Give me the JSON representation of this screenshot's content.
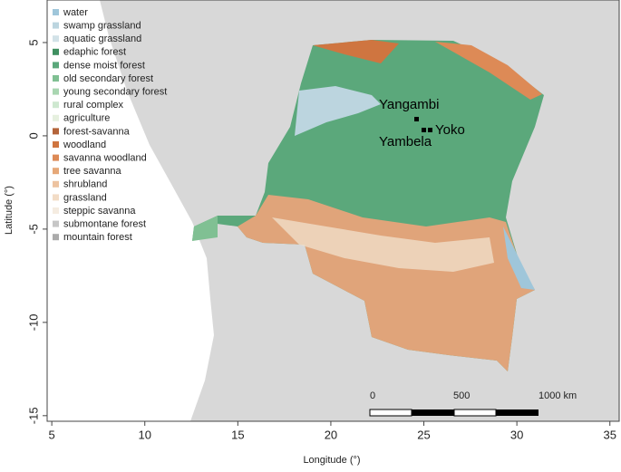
{
  "map": {
    "xlabel": "Longitude (°)",
    "ylabel": "Latitude (°)",
    "xlim": [
      4.75,
      35.5
    ],
    "ylim": [
      -15.3,
      7.28
    ],
    "xticks": [
      5,
      10,
      15,
      20,
      25,
      30,
      35
    ],
    "yticks": [
      5,
      0,
      -5,
      -10,
      -15
    ],
    "legend": [
      {
        "name": "water",
        "color": "#9fc6da"
      },
      {
        "name": "swamp grassland",
        "color": "#bcd5df"
      },
      {
        "name": "aquatic grassland",
        "color": "#d2e2e8"
      },
      {
        "name": "edaphic forest",
        "color": "#3f8f60"
      },
      {
        "name": "dense moist forest",
        "color": "#5ba87b"
      },
      {
        "name": "old secondary forest",
        "color": "#80c093"
      },
      {
        "name": "young secondary forest",
        "color": "#a9d6b1"
      },
      {
        "name": "rural complex",
        "color": "#cee8d0"
      },
      {
        "name": "agriculture",
        "color": "#e6f0df"
      },
      {
        "name": "forest-savanna",
        "color": "#b4643a"
      },
      {
        "name": "woodland",
        "color": "#cf7540"
      },
      {
        "name": "savanna woodland",
        "color": "#dd8a56"
      },
      {
        "name": "tree savanna",
        "color": "#e6a878"
      },
      {
        "name": "shrubland",
        "color": "#edc3a0"
      },
      {
        "name": "grassland",
        "color": "#f2dcc6"
      },
      {
        "name": "steppic savanna",
        "color": "#f5ece1"
      },
      {
        "name": "submontane forest",
        "color": "#c6c6c6"
      },
      {
        "name": "mountain forest",
        "color": "#ababab"
      }
    ],
    "sites": [
      "Yangambi",
      "Yoko",
      "Yambela"
    ],
    "scale_labels": [
      "0",
      "500",
      "1000 km"
    ]
  }
}
